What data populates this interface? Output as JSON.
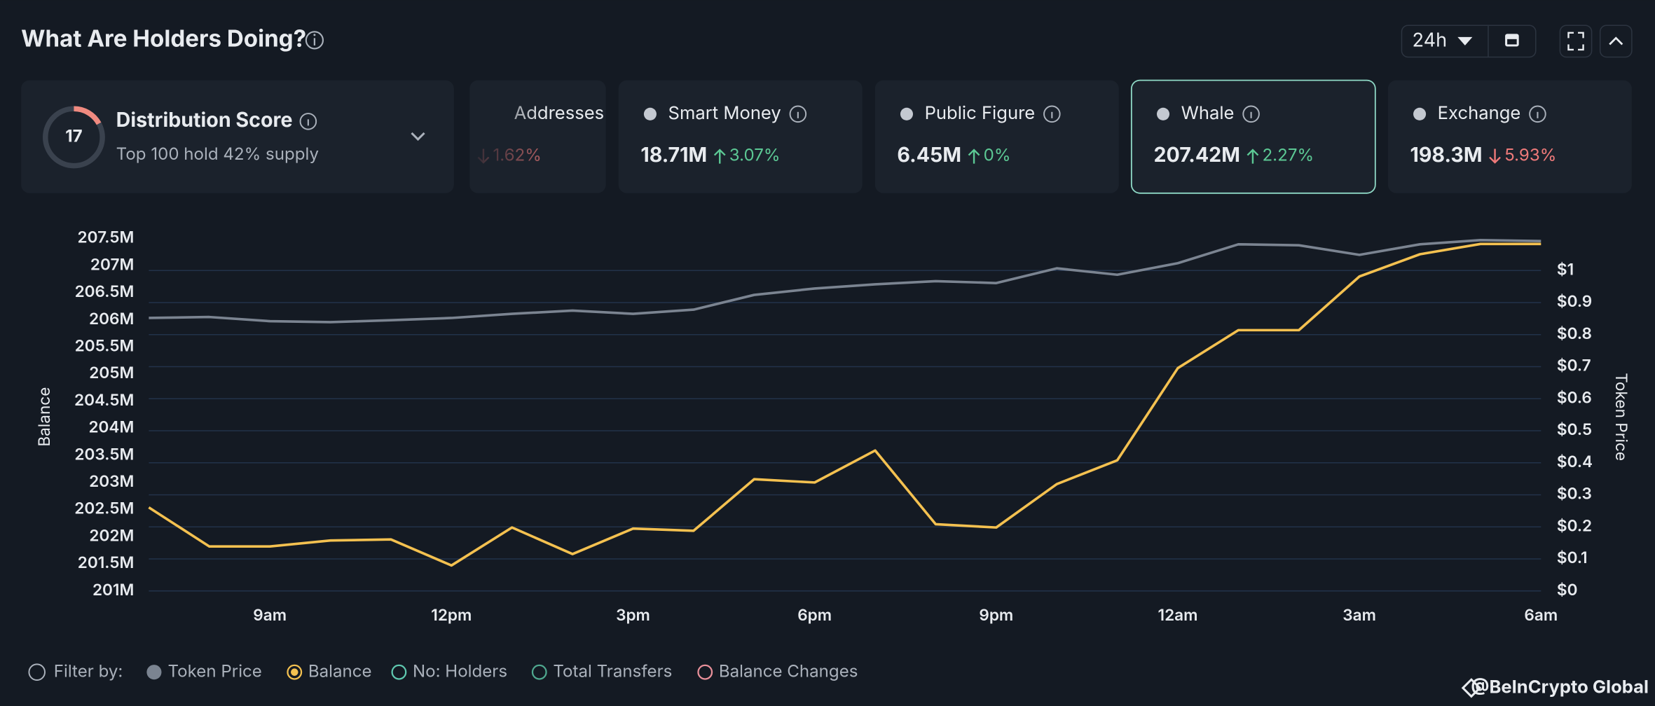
{
  "header": {
    "title": "What Are Holders Doing?",
    "time_range": "24h"
  },
  "distribution": {
    "score": 17,
    "title": "Distribution Score",
    "subtitle": "Top 100 hold 42% supply"
  },
  "cards": [
    {
      "label": "Addresses",
      "change": "1.62%",
      "direction": "down"
    },
    {
      "label": "Smart Money",
      "value": "18.71M",
      "change": "3.07%",
      "direction": "up"
    },
    {
      "label": "Public Figure",
      "value": "6.45M",
      "change": "0%",
      "direction": "up"
    },
    {
      "label": "Whale",
      "value": "207.42M",
      "change": "2.27%",
      "direction": "up",
      "selected": true
    },
    {
      "label": "Exchange",
      "value": "198.3M",
      "change": "5.93%",
      "direction": "down"
    }
  ],
  "chart_data": {
    "type": "line",
    "y_label": "Balance",
    "y2_label": "Token Price",
    "categories": [
      null,
      null,
      "9am",
      null,
      null,
      "12pm",
      null,
      null,
      "3pm",
      null,
      null,
      "6pm",
      null,
      null,
      "9pm",
      null,
      null,
      "12am",
      null,
      null,
      "3am",
      null,
      null,
      "6am"
    ],
    "series": [
      {
        "name": "Token Price",
        "color": "#7b8491",
        "axis": "y2",
        "values": [
          0.852,
          0.855,
          0.842,
          0.839,
          0.845,
          0.852,
          0.865,
          0.875,
          0.865,
          0.878,
          0.924,
          0.944,
          0.957,
          0.967,
          0.961,
          1.007,
          0.987,
          1.023,
          1.082,
          1.079,
          1.049,
          1.082,
          1.095,
          1.092
        ]
      },
      {
        "name": "Balance",
        "color": "#f4c150",
        "values": [
          202.54,
          201.82,
          201.82,
          201.93,
          201.95,
          201.47,
          202.17,
          201.68,
          202.15,
          202.11,
          203.06,
          203.0,
          203.59,
          202.23,
          202.17,
          202.97,
          203.41,
          205.11,
          205.81,
          205.81,
          206.8,
          207.21,
          207.4,
          207.4
        ]
      }
    ],
    "ylim": [
      201,
      207.5
    ],
    "yticks": [
      {
        "value": 201,
        "label": "201M"
      },
      {
        "value": 201.5,
        "label": "201.5M"
      },
      {
        "value": 202,
        "label": "202M"
      },
      {
        "value": 202.5,
        "label": "202.5M"
      },
      {
        "value": 203,
        "label": "203M"
      },
      {
        "value": 203.5,
        "label": "203.5M"
      },
      {
        "value": 204,
        "label": "204M"
      },
      {
        "value": 204.5,
        "label": "204.5M"
      },
      {
        "value": 205,
        "label": "205M"
      },
      {
        "value": 205.5,
        "label": "205.5M"
      },
      {
        "value": 206,
        "label": "206M"
      },
      {
        "value": 206.5,
        "label": "206.5M"
      },
      {
        "value": 207,
        "label": "207M"
      },
      {
        "value": 207.5,
        "label": "207.5M"
      }
    ],
    "y2lim": [
      0,
      1.1
    ],
    "y2ticks": [
      {
        "value": 0,
        "label": "$0"
      },
      {
        "value": 0.1,
        "label": "$0.1"
      },
      {
        "value": 0.2,
        "label": "$0.2"
      },
      {
        "value": 0.3,
        "label": "$0.3"
      },
      {
        "value": 0.4,
        "label": "$0.4"
      },
      {
        "value": 0.5,
        "label": "$0.5"
      },
      {
        "value": 0.6,
        "label": "$0.6"
      },
      {
        "value": 0.7,
        "label": "$0.7"
      },
      {
        "value": 0.8,
        "label": "$0.8"
      },
      {
        "value": 0.9,
        "label": "$0.9"
      },
      {
        "value": 1,
        "label": "$1"
      }
    ],
    "grid": true,
    "filter_label": "Filter by:",
    "inactive_filters": [
      {
        "name": "No: Holders",
        "color": "#5fc9b0"
      },
      {
        "name": "Total Transfers",
        "color": "#4fa88f"
      },
      {
        "name": "Balance Changes",
        "color": "#e9909a"
      }
    ]
  },
  "watermark": "@BeInCrypto Global"
}
